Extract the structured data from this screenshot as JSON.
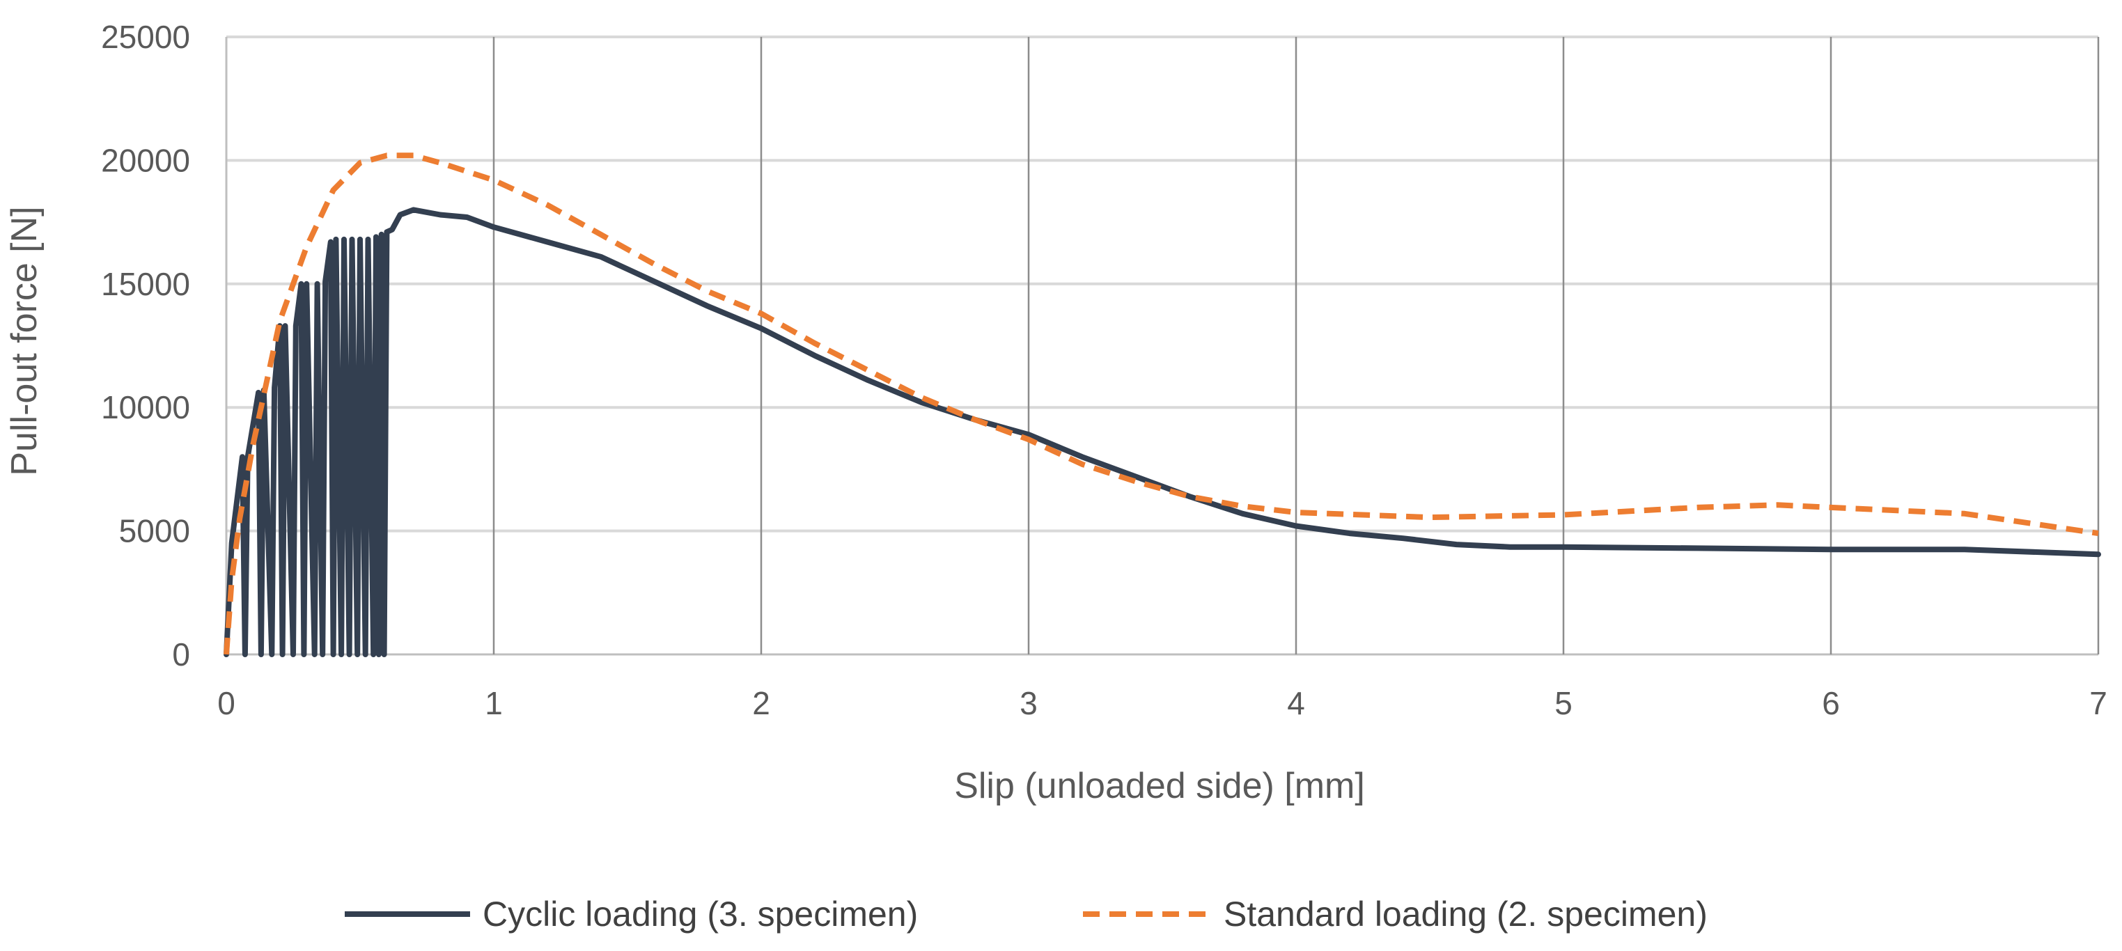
{
  "chart_data": {
    "type": "line",
    "title": "",
    "xlabel": "Slip (unloaded side) [mm]",
    "ylabel": "Pull-out force [N]",
    "xlim": [
      0,
      7
    ],
    "ylim": [
      0,
      25000
    ],
    "x_ticks": [
      "0",
      "1",
      "2",
      "3",
      "4",
      "5",
      "6",
      "7"
    ],
    "y_ticks": [
      "0",
      "5000",
      "10000",
      "15000",
      "20000",
      "25000"
    ],
    "grid": "horizontal and vertical",
    "legend_position": "bottom",
    "colors": {
      "cyclic": "#333f50",
      "standard": "#ed7d31"
    },
    "series": [
      {
        "name": "Cyclic loading (3. specimen)",
        "style": "solid",
        "color": "#333f50",
        "points": [
          [
            0,
            0
          ],
          [
            0.02,
            4500
          ],
          [
            0.06,
            8000
          ],
          [
            0.07,
            0
          ],
          [
            0.08,
            8000
          ],
          [
            0.12,
            10600
          ],
          [
            0.13,
            0
          ],
          [
            0.14,
            10700
          ],
          [
            0.17,
            0
          ],
          [
            0.18,
            10800
          ],
          [
            0.2,
            13300
          ],
          [
            0.21,
            0
          ],
          [
            0.22,
            13300
          ],
          [
            0.25,
            0
          ],
          [
            0.26,
            13300
          ],
          [
            0.28,
            15000
          ],
          [
            0.29,
            0
          ],
          [
            0.3,
            15000
          ],
          [
            0.33,
            0
          ],
          [
            0.34,
            15000
          ],
          [
            0.36,
            0
          ],
          [
            0.37,
            15100
          ],
          [
            0.39,
            16700
          ],
          [
            0.4,
            0
          ],
          [
            0.41,
            16800
          ],
          [
            0.43,
            0
          ],
          [
            0.44,
            16800
          ],
          [
            0.46,
            0
          ],
          [
            0.47,
            16800
          ],
          [
            0.49,
            0
          ],
          [
            0.5,
            16800
          ],
          [
            0.52,
            0
          ],
          [
            0.53,
            16800
          ],
          [
            0.55,
            0
          ],
          [
            0.56,
            16900
          ],
          [
            0.57,
            0
          ],
          [
            0.58,
            17000
          ],
          [
            0.59,
            0
          ],
          [
            0.6,
            17100
          ],
          [
            0.62,
            17200
          ],
          [
            0.65,
            17800
          ],
          [
            0.7,
            18000
          ],
          [
            0.8,
            17800
          ],
          [
            0.9,
            17700
          ],
          [
            1.0,
            17300
          ],
          [
            1.2,
            16700
          ],
          [
            1.4,
            16100
          ],
          [
            1.6,
            15100
          ],
          [
            1.8,
            14100
          ],
          [
            2.0,
            13200
          ],
          [
            2.2,
            12100
          ],
          [
            2.4,
            11100
          ],
          [
            2.6,
            10200
          ],
          [
            2.8,
            9500
          ],
          [
            3.0,
            8900
          ],
          [
            3.2,
            8000
          ],
          [
            3.4,
            7200
          ],
          [
            3.6,
            6400
          ],
          [
            3.8,
            5700
          ],
          [
            4.0,
            5200
          ],
          [
            4.2,
            4900
          ],
          [
            4.4,
            4700
          ],
          [
            4.6,
            4450
          ],
          [
            4.8,
            4350
          ],
          [
            5.0,
            4350
          ],
          [
            5.5,
            4300
          ],
          [
            6.0,
            4250
          ],
          [
            6.5,
            4250
          ],
          [
            7.0,
            4050
          ]
        ]
      },
      {
        "name": "Standard loading (2. specimen)",
        "style": "dashed",
        "color": "#ed7d31",
        "points": [
          [
            0,
            0
          ],
          [
            0.02,
            3000
          ],
          [
            0.05,
            5500
          ],
          [
            0.1,
            8500
          ],
          [
            0.15,
            11000
          ],
          [
            0.2,
            13500
          ],
          [
            0.3,
            16500
          ],
          [
            0.4,
            18800
          ],
          [
            0.5,
            19900
          ],
          [
            0.6,
            20200
          ],
          [
            0.7,
            20200
          ],
          [
            0.8,
            19900
          ],
          [
            1.0,
            19200
          ],
          [
            1.2,
            18200
          ],
          [
            1.4,
            17000
          ],
          [
            1.6,
            15800
          ],
          [
            1.8,
            14700
          ],
          [
            2.0,
            13800
          ],
          [
            2.2,
            12600
          ],
          [
            2.4,
            11500
          ],
          [
            2.6,
            10400
          ],
          [
            2.8,
            9500
          ],
          [
            3.0,
            8700
          ],
          [
            3.2,
            7700
          ],
          [
            3.4,
            7000
          ],
          [
            3.6,
            6400
          ],
          [
            3.8,
            6000
          ],
          [
            4.0,
            5750
          ],
          [
            4.5,
            5550
          ],
          [
            5.0,
            5650
          ],
          [
            5.5,
            5950
          ],
          [
            5.8,
            6050
          ],
          [
            6.0,
            5950
          ],
          [
            6.5,
            5700
          ],
          [
            7.0,
            4900
          ]
        ]
      }
    ]
  }
}
